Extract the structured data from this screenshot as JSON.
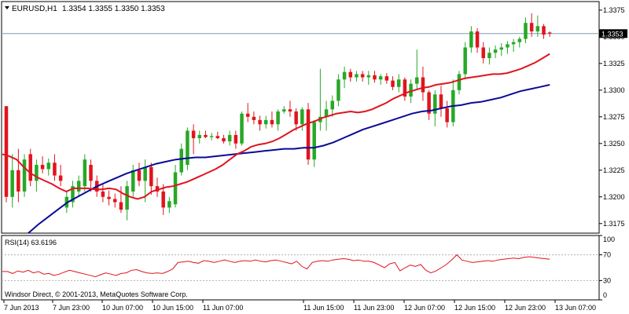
{
  "header": {
    "symbol": "EURUSD,H1",
    "ohlc": "1.3354 1.3355 1.3350 1.3353"
  },
  "price_axis": {
    "ticks": [
      "1.3375",
      "1.3350",
      "1.3325",
      "1.3300",
      "1.3275",
      "1.3250",
      "1.3225",
      "1.3200",
      "1.3175"
    ],
    "current_price_label": "1.3353"
  },
  "rsi": {
    "label": "RSI(14) 63.6196",
    "ticks": [
      "100",
      "70",
      "30",
      "0"
    ]
  },
  "footer": {
    "copyright": "Windsor Direct, © 2001-2013, MetaQuotes Software Corp."
  },
  "time_axis": {
    "ticks": [
      "7 Jun 2013",
      "7 Jun 23:00",
      "10 Jun 07:00",
      "10 Jun 15:00",
      "11 Jun 07:00",
      "11 Jun 15:00",
      "11 Jun 23:00",
      "12 Jun 07:00",
      "12 Jun 15:00",
      "12 Jun 23:00",
      "13 Jun 07:00"
    ]
  },
  "colors": {
    "bull": "#27a827",
    "bear": "#e0141e",
    "ma_fast": "#e0141e",
    "ma_slow": "#0a0a99",
    "rsi_line": "#e0141e",
    "grid_border": "#000000"
  },
  "chart_data": {
    "type": "candlestick",
    "symbol": "EURUSD",
    "timeframe": "H1",
    "ylim": [
      1.3166,
      1.3383
    ],
    "current_price": 1.3353,
    "candles": [
      [
        1.3285,
        1.3285,
        1.3195,
        1.32
      ],
      [
        1.32,
        1.324,
        1.319,
        1.3225
      ],
      [
        1.3225,
        1.3245,
        1.3195,
        1.3205
      ],
      [
        1.3205,
        1.324,
        1.32,
        1.3235
      ],
      [
        1.324,
        1.3245,
        1.321,
        1.3215
      ],
      [
        1.3215,
        1.3235,
        1.3205,
        1.323
      ],
      [
        1.323,
        1.3238,
        1.3222,
        1.3226
      ],
      [
        1.3226,
        1.3236,
        1.322,
        1.3232
      ],
      [
        1.3232,
        1.324,
        1.3215,
        1.322
      ],
      [
        1.322,
        1.323,
        1.321,
        1.3215
      ],
      [
        1.319,
        1.3205,
        1.3185,
        1.32
      ],
      [
        1.3195,
        1.3215,
        1.319,
        1.321
      ],
      [
        1.3205,
        1.322,
        1.32,
        1.3215
      ],
      [
        1.321,
        1.324,
        1.3205,
        1.3235
      ],
      [
        1.323,
        1.3235,
        1.3205,
        1.3215
      ],
      [
        1.3215,
        1.322,
        1.32,
        1.3205
      ],
      [
        1.3205,
        1.3212,
        1.3195,
        1.32
      ],
      [
        1.32,
        1.3206,
        1.3192,
        1.3198
      ],
      [
        1.3198,
        1.3203,
        1.319,
        1.3195
      ],
      [
        1.3195,
        1.321,
        1.3185,
        1.3188
      ],
      [
        1.3188,
        1.3215,
        1.3178,
        1.321
      ],
      [
        1.3205,
        1.323,
        1.32,
        1.3225
      ],
      [
        1.3225,
        1.3232,
        1.321,
        1.3215
      ],
      [
        1.3215,
        1.3235,
        1.3195,
        1.3228
      ],
      [
        1.3228,
        1.3232,
        1.3202,
        1.321
      ],
      [
        1.321,
        1.3218,
        1.32,
        1.3205
      ],
      [
        1.3205,
        1.3212,
        1.3183,
        1.319
      ],
      [
        1.319,
        1.32,
        1.3185,
        1.3196
      ],
      [
        1.3193,
        1.323,
        1.319,
        1.3223
      ],
      [
        1.3223,
        1.325,
        1.322,
        1.3245
      ],
      [
        1.323,
        1.3265,
        1.3225,
        1.3262
      ],
      [
        1.3262,
        1.3268,
        1.324,
        1.3255
      ],
      [
        1.3255,
        1.3262,
        1.325,
        1.3258
      ],
      [
        1.3258,
        1.3262,
        1.3255,
        1.3256
      ],
      [
        1.3256,
        1.326,
        1.3253,
        1.3257
      ],
      [
        1.3257,
        1.3261,
        1.3254,
        1.3255
      ],
      [
        1.3255,
        1.3258,
        1.325,
        1.3252
      ],
      [
        1.3252,
        1.3262,
        1.3248,
        1.3258
      ],
      [
        1.3258,
        1.3262,
        1.3245,
        1.325
      ],
      [
        1.325,
        1.328,
        1.3248,
        1.3278
      ],
      [
        1.3278,
        1.3288,
        1.327,
        1.3275
      ],
      [
        1.3275,
        1.328,
        1.3268,
        1.3272
      ],
      [
        1.3272,
        1.3276,
        1.3262,
        1.3268
      ],
      [
        1.3268,
        1.3276,
        1.3264,
        1.3272
      ],
      [
        1.3272,
        1.328,
        1.3265,
        1.3268
      ],
      [
        1.3268,
        1.3282,
        1.3262,
        1.328
      ],
      [
        1.328,
        1.3285,
        1.3278,
        1.3282
      ],
      [
        1.3282,
        1.329,
        1.3275,
        1.328
      ],
      [
        1.328,
        1.3283,
        1.3262,
        1.3268
      ],
      [
        1.3268,
        1.3284,
        1.3262,
        1.3282
      ],
      [
        1.3282,
        1.3288,
        1.323,
        1.3235
      ],
      [
        1.3235,
        1.3272,
        1.3228,
        1.327
      ],
      [
        1.327,
        1.332,
        1.3262,
        1.3275
      ],
      [
        1.3275,
        1.329,
        1.3262,
        1.3282
      ],
      [
        1.3282,
        1.3295,
        1.3275,
        1.329
      ],
      [
        1.329,
        1.3315,
        1.3285,
        1.331
      ],
      [
        1.331,
        1.3322,
        1.3302,
        1.3317
      ],
      [
        1.3317,
        1.332,
        1.3308,
        1.3312
      ],
      [
        1.3312,
        1.3318,
        1.3308,
        1.3315
      ],
      [
        1.3315,
        1.3318,
        1.3308,
        1.3312
      ],
      [
        1.3312,
        1.3318,
        1.3305,
        1.3314
      ],
      [
        1.3314,
        1.3318,
        1.3307,
        1.331
      ],
      [
        1.331,
        1.3315,
        1.3305,
        1.3313
      ],
      [
        1.3313,
        1.3316,
        1.3306,
        1.3309
      ],
      [
        1.3309,
        1.3313,
        1.33,
        1.3303
      ],
      [
        1.3303,
        1.3315,
        1.3298,
        1.331
      ],
      [
        1.331,
        1.3312,
        1.329,
        1.3294
      ],
      [
        1.3294,
        1.331,
        1.3288,
        1.3306
      ],
      [
        1.3306,
        1.3338,
        1.33,
        1.3312
      ],
      [
        1.3312,
        1.3322,
        1.329,
        1.3298
      ],
      [
        1.3298,
        1.33,
        1.3272,
        1.3278
      ],
      [
        1.3278,
        1.33,
        1.3266,
        1.3296
      ],
      [
        1.3296,
        1.3304,
        1.3275,
        1.3283
      ],
      [
        1.3283,
        1.329,
        1.3265,
        1.327
      ],
      [
        1.327,
        1.331,
        1.3266,
        1.33
      ],
      [
        1.33,
        1.3318,
        1.3296,
        1.3315
      ],
      [
        1.3315,
        1.3345,
        1.331,
        1.334
      ],
      [
        1.334,
        1.336,
        1.3335,
        1.3355
      ],
      [
        1.3355,
        1.3358,
        1.3335,
        1.334
      ],
      [
        1.334,
        1.3345,
        1.3325,
        1.333
      ],
      [
        1.333,
        1.334,
        1.3324,
        1.3335
      ],
      [
        1.3335,
        1.3342,
        1.333,
        1.3338
      ],
      [
        1.3338,
        1.3344,
        1.3332,
        1.334
      ],
      [
        1.334,
        1.3346,
        1.3334,
        1.3343
      ],
      [
        1.3343,
        1.3348,
        1.3336,
        1.3345
      ],
      [
        1.3345,
        1.335,
        1.334,
        1.3348
      ],
      [
        1.3348,
        1.3368,
        1.3344,
        1.3363
      ],
      [
        1.3363,
        1.3372,
        1.335,
        1.3355
      ],
      [
        1.3355,
        1.337,
        1.335,
        1.336
      ],
      [
        1.336,
        1.3362,
        1.3348,
        1.3352
      ],
      [
        1.3354,
        1.3355,
        1.335,
        1.3353
      ]
    ],
    "ma_fast": [
      1.324,
      1.3238,
      1.3235,
      1.3228,
      1.3222,
      1.3218,
      1.3215,
      1.3212,
      1.3208,
      1.3205,
      1.3208,
      1.3208,
      1.3208,
      1.3207,
      1.3207,
      1.3208,
      1.3207,
      1.3203,
      1.32,
      1.3198,
      1.32,
      1.3205,
      1.3207,
      1.3209,
      1.321,
      1.3212,
      1.3214,
      1.3217,
      1.322,
      1.3223,
      1.3226,
      1.323,
      1.3235,
      1.324,
      1.3243,
      1.3247,
      1.3249,
      1.325,
      1.3252,
      1.3255,
      1.3259,
      1.3263,
      1.3266,
      1.3269,
      1.3271,
      1.3274,
      1.3276,
      1.3278,
      1.3279,
      1.328,
      1.3279,
      1.328,
      1.3282,
      1.3285,
      1.3288,
      1.3292,
      1.3295,
      1.3298,
      1.33,
      1.3302,
      1.3303,
      1.3305,
      1.3306,
      1.3307,
      1.3309,
      1.3311,
      1.3312,
      1.3313,
      1.3314,
      1.3315,
      1.3315,
      1.3316,
      1.3318,
      1.332,
      1.3323,
      1.3326,
      1.333,
      1.3334
    ],
    "ma_slow": [
      1.3166,
      1.3174,
      1.3181,
      1.3188,
      1.3195,
      1.32,
      1.3205,
      1.321,
      1.3214,
      1.3218,
      1.3222,
      1.3225,
      1.3228,
      1.3231,
      1.3233,
      1.3235,
      1.3236,
      1.3237,
      1.3237,
      1.3238,
      1.3239,
      1.324,
      1.3241,
      1.3242,
      1.3243,
      1.3244,
      1.3245,
      1.3245,
      1.3246,
      1.3246,
      1.3248,
      1.3251,
      1.3255,
      1.3259,
      1.3263,
      1.3266,
      1.3269,
      1.3272,
      1.3275,
      1.3278,
      1.328,
      1.3281,
      1.3283,
      1.3285,
      1.3286,
      1.3288,
      1.3289,
      1.3291,
      1.3293,
      1.3296,
      1.3299,
      1.3301,
      1.3303,
      1.3305
    ],
    "rsi_line": [
      44,
      44,
      41,
      45,
      43,
      46,
      42,
      44,
      40,
      41,
      38,
      40,
      43,
      46,
      44,
      42,
      40,
      38,
      36,
      39,
      42,
      40,
      38,
      41,
      42,
      46,
      47,
      44,
      42,
      41,
      42,
      41,
      44,
      48,
      58,
      59,
      60,
      58,
      57,
      61,
      60,
      58,
      60,
      62,
      60,
      58,
      60,
      61,
      60,
      62,
      60,
      59,
      61,
      62,
      60,
      58,
      56,
      60,
      52,
      48,
      58,
      60,
      61,
      60,
      62,
      63,
      64,
      63,
      61,
      62,
      60,
      60,
      58,
      54,
      50,
      56,
      58,
      45,
      50,
      54,
      52,
      55,
      46,
      42,
      45,
      50,
      55,
      62,
      70,
      62,
      60,
      58,
      59,
      60,
      61,
      60,
      62,
      63,
      64,
      65,
      64,
      66,
      67,
      66,
      65,
      64,
      63
    ],
    "rsi_ylim": [
      0,
      100
    ],
    "rsi_levels": [
      70,
      30
    ]
  }
}
